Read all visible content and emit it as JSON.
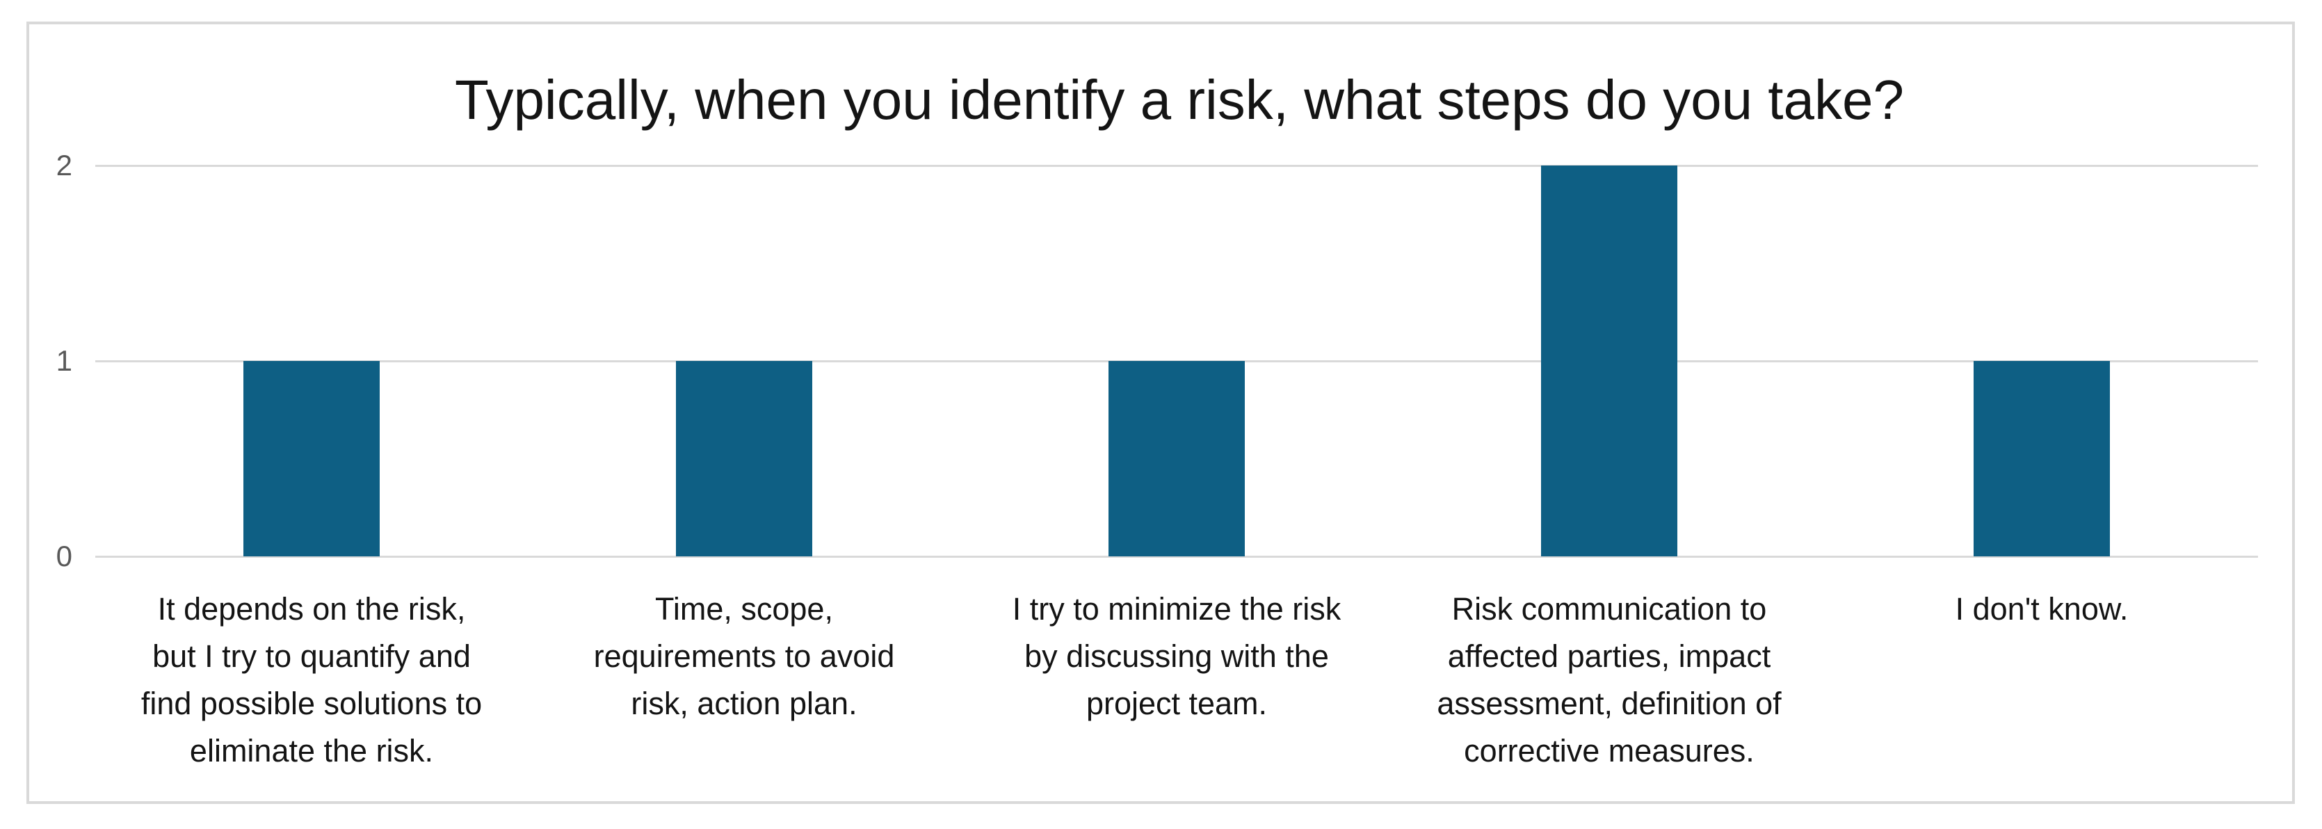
{
  "chart_data": {
    "type": "bar",
    "title": "Typically, when you identify a risk, what steps do you take?",
    "categories": [
      "It depends on the risk, but I try to quantify and find possible solutions to eliminate the risk.",
      "Time, scope, requirements to avoid risk, action plan.",
      "I try to minimize the risk by discussing with the project team.",
      "Risk communication to affected parties, impact assessment, definition of corrective measures.",
      "I don't know."
    ],
    "categories_wrapped": [
      [
        "It depends on the risk,",
        "but I try to quantify and",
        "find possible solutions to",
        "eliminate the risk."
      ],
      [
        "Time, scope,",
        "requirements to avoid",
        "risk, action plan."
      ],
      [
        "I try to minimize the risk",
        "by discussing with the",
        "project team."
      ],
      [
        "Risk communication to",
        "affected parties, impact",
        "assessment, definition of",
        "corrective measures."
      ],
      [
        "I don't know."
      ]
    ],
    "values": [
      1,
      1,
      1,
      2,
      1
    ],
    "y_ticks": [
      0,
      1,
      2
    ],
    "ylim": [
      0,
      2
    ],
    "grid": "horizontal",
    "legend": "none",
    "colors": {
      "bar": "#0e5f84",
      "gridline": "#d9d9d9",
      "frame_border": "#d9d9d9",
      "tick_label": "#595959",
      "text": "#141414",
      "background": "#ffffff"
    }
  }
}
